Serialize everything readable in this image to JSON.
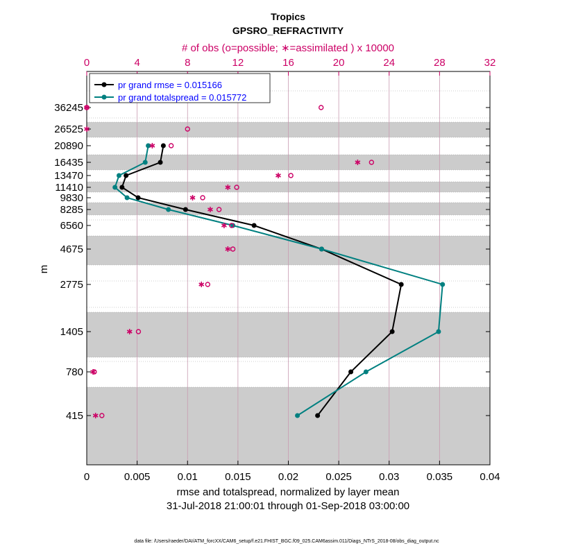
{
  "chart_data": {
    "type": "line",
    "title": "Tropics",
    "subtitle": "GPSRO_REFRACTIVITY",
    "top_axis_label": "# of obs (o=possible; ∗=assimilated ) x 10000",
    "xlabel": "rmse and totalspread, normalized by layer mean",
    "date_range": "31-Jul-2018 21:00:01 through 01-Sep-2018 03:00:00",
    "ylabel": "m",
    "footer": "data file: /Users/raeder/DAI/ATM_forcXX/CAM6_setup/f.e21.FHIST_BGC.f09_025.CAM6assim.011/Diags_NTrS_2018-08/obs_diag_output.nc",
    "xlim": [
      0,
      0.04
    ],
    "x_ticks": [
      "0",
      "0.005",
      "0.01",
      "0.015",
      "0.02",
      "0.025",
      "0.03",
      "0.035",
      "0.04"
    ],
    "top_xlim": [
      0,
      32
    ],
    "top_ticks": [
      "0",
      "4",
      "8",
      "12",
      "16",
      "20",
      "24",
      "28",
      "32"
    ],
    "levels": [
      36245,
      26525,
      20890,
      16435,
      13470,
      11410,
      9830,
      8285,
      6560,
      4675,
      2775,
      1405,
      780,
      415
    ],
    "level_labels": [
      "36245",
      "26525",
      "20890",
      "16435",
      "13470",
      "11410",
      "9830",
      "8285",
      "6560",
      "4675",
      "2775",
      "1405",
      "780",
      "415"
    ],
    "series": [
      {
        "name": "rmse",
        "legend": "pr grand rmse = 0.015166",
        "color": "#000000",
        "points": [
          [
            0.0076,
            20890
          ],
          [
            0.0073,
            16435
          ],
          [
            0.0039,
            13470
          ],
          [
            0.0035,
            11410
          ],
          [
            0.0051,
            9830
          ],
          [
            0.0098,
            8285
          ],
          [
            0.0166,
            6560
          ],
          [
            0.0233,
            4675
          ],
          [
            0.0312,
            2775
          ],
          [
            0.0303,
            1405
          ],
          [
            0.0262,
            780
          ],
          [
            0.0229,
            415
          ]
        ]
      },
      {
        "name": "totalspread",
        "legend": "pr grand totalspread = 0.015772",
        "color": "#008080",
        "points": [
          [
            0.0061,
            20890
          ],
          [
            0.0058,
            16435
          ],
          [
            0.0032,
            13470
          ],
          [
            0.0028,
            11410
          ],
          [
            0.004,
            9830
          ],
          [
            0.0081,
            8285
          ],
          [
            0.0145,
            6560
          ],
          [
            0.0233,
            4675
          ],
          [
            0.0353,
            2775
          ],
          [
            0.0349,
            1405
          ],
          [
            0.0277,
            780
          ],
          [
            0.0209,
            415
          ]
        ]
      }
    ],
    "obs_possible": [
      [
        0,
        36245
      ],
      [
        18.6,
        36245
      ],
      [
        8,
        26525
      ],
      [
        6.7,
        20890
      ],
      [
        22.6,
        16435
      ],
      [
        16.2,
        13470
      ],
      [
        11.9,
        11410
      ],
      [
        9.2,
        9830
      ],
      [
        10.5,
        8285
      ],
      [
        11.5,
        6560
      ],
      [
        11.6,
        4675
      ],
      [
        9.6,
        2775
      ],
      [
        4.1,
        1405
      ],
      [
        0.6,
        780
      ],
      [
        1.2,
        415
      ]
    ],
    "obs_assimilated": [
      [
        0,
        36245
      ],
      [
        0,
        26525
      ],
      [
        5.2,
        20890
      ],
      [
        21.5,
        16435
      ],
      [
        15.2,
        13470
      ],
      [
        11.2,
        11410
      ],
      [
        8.4,
        9830
      ],
      [
        9.8,
        8285
      ],
      [
        10.9,
        6560
      ],
      [
        11.2,
        4675
      ],
      [
        9.1,
        2775
      ],
      [
        3.4,
        1405
      ],
      [
        0.5,
        780
      ],
      [
        0.7,
        415
      ]
    ],
    "obs_marker_color": "#cc0066",
    "grid": true,
    "legend_position": "top-left"
  }
}
